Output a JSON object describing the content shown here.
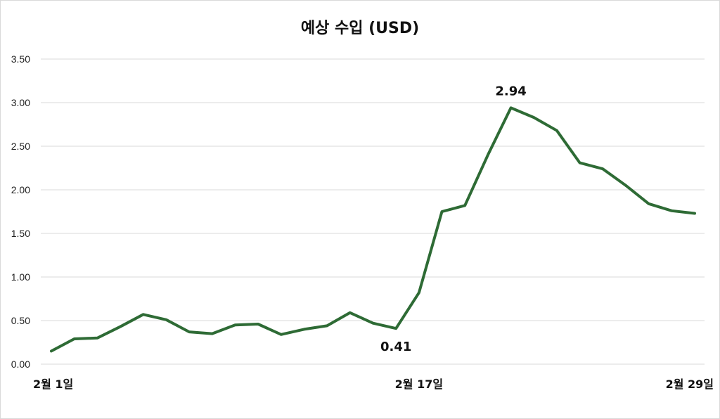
{
  "chart_data": {
    "type": "line",
    "title": "예상 수입 (USD)",
    "xlabel": "",
    "ylabel": "",
    "ylim": [
      0,
      3.5
    ],
    "y_ticks": [
      "0.00",
      "0.50",
      "1.00",
      "1.50",
      "2.00",
      "2.50",
      "3.00",
      "3.50"
    ],
    "x_tick_labels": [
      {
        "label": "2월 1일",
        "index": 0
      },
      {
        "label": "2월 17일",
        "index": 16
      },
      {
        "label": "2월 29일",
        "index": 28
      }
    ],
    "grid": true,
    "legend": "none",
    "color": "#2e6b35",
    "series": [
      {
        "values": [
          0.15,
          0.29,
          0.3,
          0.43,
          0.57,
          0.51,
          0.37,
          0.35,
          0.45,
          0.46,
          0.34,
          0.4,
          0.44,
          0.59,
          0.47,
          0.41,
          0.82,
          1.75,
          1.82,
          2.4,
          2.94,
          2.83,
          2.68,
          2.31,
          2.24,
          2.05,
          1.84,
          1.76,
          1.73
        ]
      }
    ],
    "data_labels": [
      {
        "index": 15,
        "text": "0.41",
        "position": "below"
      },
      {
        "index": 20,
        "text": "2.94",
        "position": "above"
      }
    ]
  }
}
